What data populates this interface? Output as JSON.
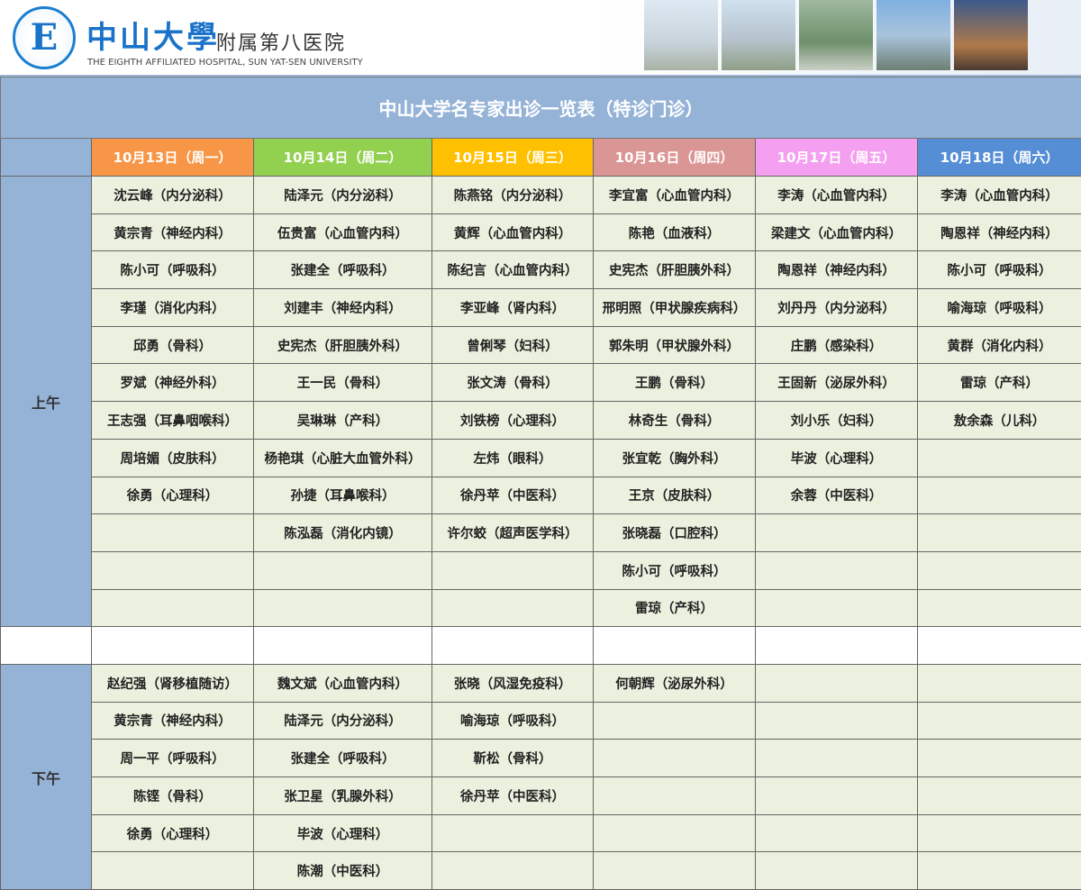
{
  "banner": {
    "brand_cn": "中山大學",
    "brand_sub": "附属第八医院",
    "brand_en": "THE EIGHTH AFFILIATED HOSPITAL, SUN YAT-SEN UNIVERSITY",
    "logo_letter": "E"
  },
  "title": "中山大学名专家出诊一览表（特诊门诊）",
  "days": [
    {
      "label": "10月13日（周一）",
      "color": "#f79646"
    },
    {
      "label": "10月14日（周二）",
      "color": "#92d050"
    },
    {
      "label": "10月15日（周三）",
      "color": "#ffc000"
    },
    {
      "label": "10月16日（周四）",
      "color": "#da9694"
    },
    {
      "label": "10月17日（周五）",
      "color": "#f59ff0"
    },
    {
      "label": "10月18日（周六）",
      "color": "#558ed5"
    }
  ],
  "morning": {
    "label": "上午",
    "columns": [
      [
        "沈云峰（内分泌科）",
        "黄宗青（神经内科）",
        "陈小可（呼吸科）",
        "李瑾（消化内科）",
        "邱勇（骨科）",
        "罗斌（神经外科）",
        "王志强（耳鼻咽喉科）",
        "周培媚（皮肤科）",
        "徐勇（心理科）",
        "",
        "",
        ""
      ],
      [
        "陆泽元（内分泌科）",
        "伍贵富（心血管内科）",
        "张建全（呼吸科）",
        "刘建丰（神经内科）",
        "史宪杰（肝胆胰外科）",
        "王一民（骨科）",
        "吴琳琳（产科）",
        "杨艳琪（心脏大血管外科）",
        "孙捷（耳鼻喉科）",
        "陈泓磊（消化内镜）",
        "",
        ""
      ],
      [
        "陈燕铭（内分泌科）",
        "黄辉（心血管内科）",
        "陈纪言（心血管内科）",
        "李亚峰（肾内科）",
        "曾俐琴（妇科）",
        "张文涛（骨科）",
        "刘铁榜（心理科）",
        "左炜（眼科）",
        "徐丹苹（中医科）",
        "许尔蛟（超声医学科）",
        "",
        ""
      ],
      [
        "李宜富（心血管内科）",
        "陈艳（血液科）",
        "史宪杰（肝胆胰外科）",
        "邢明照（甲状腺疾病科）",
        "郭朱明（甲状腺外科）",
        "王鹏（骨科）",
        "林奇生（骨科）",
        "张宜乾（胸外科）",
        "王京（皮肤科）",
        "张晓磊（口腔科）",
        "陈小可（呼吸科）",
        "雷琼（产科）"
      ],
      [
        "李涛（心血管内科）",
        "梁建文（心血管内科）",
        "陶恩祥（神经内科）",
        "刘丹丹（内分泌科）",
        "庄鹏（感染科）",
        "王固新（泌尿外科）",
        "刘小乐（妇科）",
        "毕波（心理科）",
        "余蓉（中医科）",
        "",
        "",
        ""
      ],
      [
        "李涛（心血管内科）",
        "陶恩祥（神经内科）",
        "陈小可（呼吸科）",
        "喻海琼（呼吸科）",
        "黄群（消化内科）",
        "雷琼（产科）",
        "敖余森（儿科）",
        "",
        "",
        "",
        "",
        ""
      ]
    ]
  },
  "afternoon": {
    "label": "下午",
    "columns": [
      [
        "赵纪强（肾移植随访）",
        "黄宗青（神经内科）",
        "周一平（呼吸科）",
        "陈铿（骨科）",
        "徐勇（心理科）",
        ""
      ],
      [
        "魏文斌（心血管内科）",
        "陆泽元（内分泌科）",
        "张建全（呼吸科）",
        "张卫星（乳腺外科）",
        "毕波（心理科）",
        "陈潮（中医科）"
      ],
      [
        "张晓（风湿免疫科）",
        "喻海琼（呼吸科）",
        "靳松（骨科）",
        "徐丹苹（中医科）",
        "",
        ""
      ],
      [
        "何朝辉（泌尿外科）",
        "",
        "",
        "",
        "",
        ""
      ],
      [
        "",
        "",
        "",
        "",
        "",
        ""
      ],
      [
        "",
        "",
        "",
        "",
        "",
        ""
      ]
    ]
  }
}
